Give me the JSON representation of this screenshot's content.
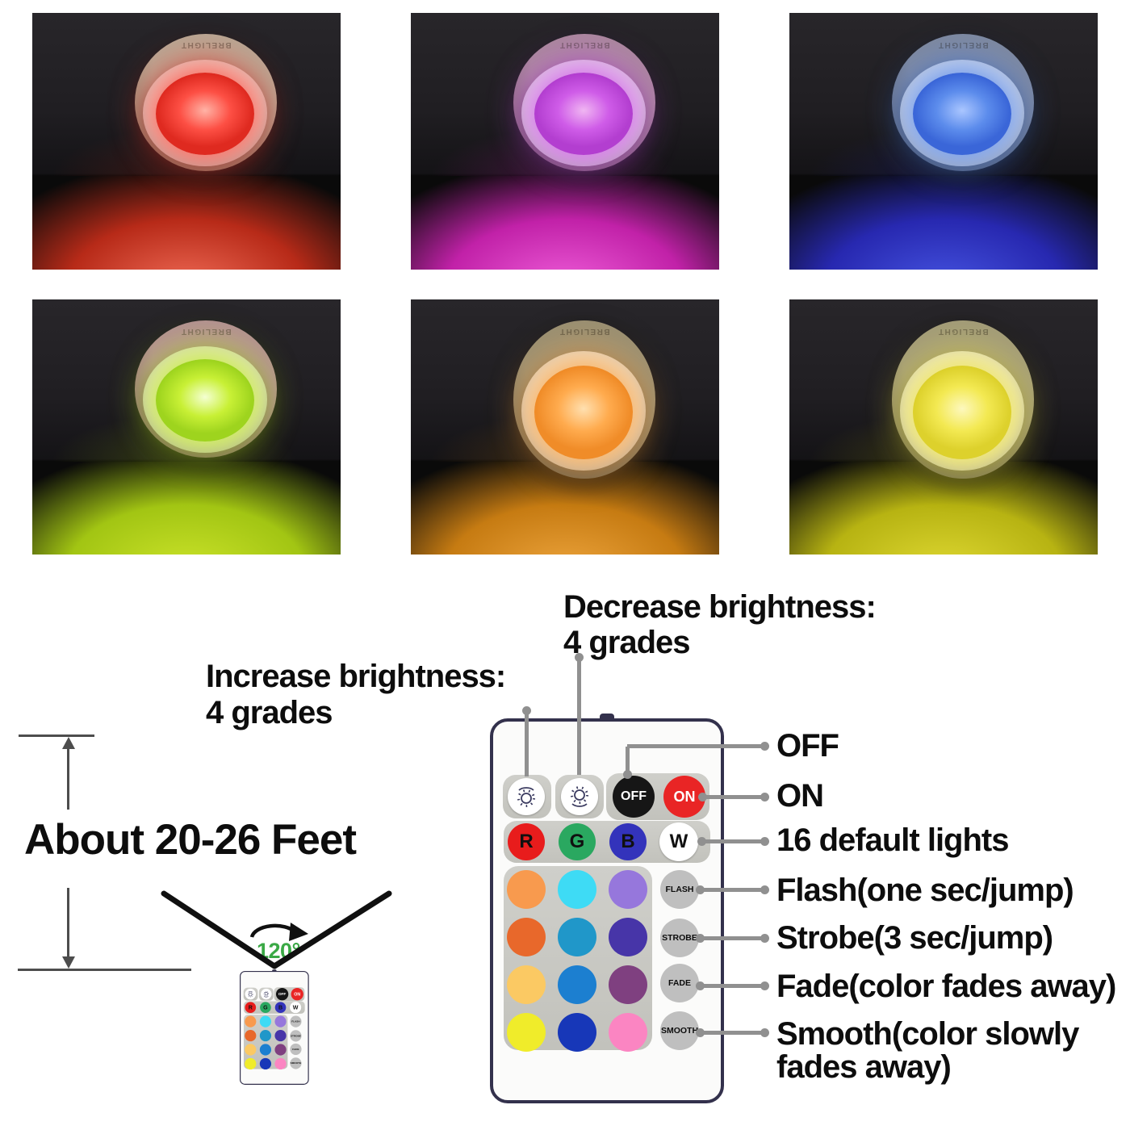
{
  "photos": [
    {
      "name": "red",
      "brand": "BRELIGHT",
      "lens": "#fd4f44",
      "lens_center": "#ffb3a6",
      "lens_edge": "#df2a20",
      "glow": "#b72a18",
      "glow_center": "#ef6a55",
      "base": "#b7a794",
      "base_lo": "#85755f",
      "ring": "#e9e3da"
    },
    {
      "name": "magenta",
      "brand": "BRELIGHT",
      "lens": "#cf5ce8",
      "lens_center": "#f0b6f2",
      "lens_edge": "#b33ed0",
      "glow": "#c121a8",
      "glow_center": "#ee5cd8",
      "base": "#a9879c",
      "base_lo": "#78576e",
      "ring": "#e9e0e8"
    },
    {
      "name": "blue",
      "brand": "BRELIGHT",
      "lens": "#5c8cec",
      "lens_center": "#aac6ff",
      "lens_edge": "#3a66d8",
      "glow": "#2728b0",
      "glow_center": "#4553e0",
      "base": "#7e889e",
      "base_lo": "#555f76",
      "ring": "#e0e3e9"
    },
    {
      "name": "green",
      "brand": "BRELIGHT",
      "lens": "#c8f035",
      "lens_center": "#f4ffd2",
      "lens_edge": "#9ed41e",
      "glow": "#a2c513",
      "glow_center": "#cbe32a",
      "base": "#b28f92",
      "base_lo": "#83646a",
      "ring": "#e4e0d4"
    },
    {
      "name": "orange",
      "brand": "BRELIGHT",
      "lens": "#ffab4e",
      "lens_center": "#ffe0b0",
      "lens_edge": "#f08c28",
      "glow": "#c67b12",
      "glow_center": "#eda43c",
      "base": "#9a8f72",
      "base_lo": "#6e6450",
      "ring": "#e8e2d6"
    },
    {
      "name": "yellow",
      "brand": "BRELIGHT",
      "lens": "#f3e952",
      "lens_center": "#fdf8be",
      "lens_edge": "#ddd12c",
      "glow": "#b7b312",
      "glow_center": "#ded832",
      "base": "#a29b78",
      "base_lo": "#746d52",
      "ring": "#e8e4d2"
    }
  ],
  "diagram": {
    "increase_label": {
      "line1": "Increase brightness:",
      "line2": "4 grades"
    },
    "decrease_label": {
      "line1": "Decrease brightness:",
      "line2": "4 grades"
    },
    "distance_label": "About 20-26 Feet",
    "beam_angle_label": "120°",
    "beam_angle_color": "#3aa945",
    "right_labels": {
      "off": "OFF",
      "on": "ON",
      "default_lights": "16 default lights",
      "flash": "Flash(one sec/jump)",
      "strobe": "Strobe(3 sec/jump)",
      "fade": "Fade(color fades away)",
      "smooth_line1": "Smooth(color slowly",
      "smooth_line2": "fades away)"
    }
  },
  "remote": {
    "brightness_up_icon": "sun-arc-up",
    "brightness_down_icon": "sun-arc-down",
    "off_button": "OFF",
    "on_button": "ON",
    "red_button": "R",
    "green_button": "G",
    "blue_button": "B",
    "white_button": "W",
    "mode_buttons": [
      "FLASH",
      "STROBE",
      "FADE",
      "SMOOTH"
    ],
    "button_colors": {
      "on": "#e92525",
      "off": "#161616",
      "r": "#e81c1c",
      "g": "#2aa860",
      "b": "#3333bb",
      "mode": "#bfbfbf"
    },
    "color_grid": [
      [
        "#f89a4e",
        "#3edbf5",
        "#9677dc"
      ],
      [
        "#e8682b",
        "#2097c9",
        "#4735a8"
      ],
      [
        "#fbc963",
        "#1c7fd0",
        "#7f4080"
      ],
      [
        "#f0ec2a",
        "#1737b8",
        "#fb85c2"
      ]
    ]
  }
}
